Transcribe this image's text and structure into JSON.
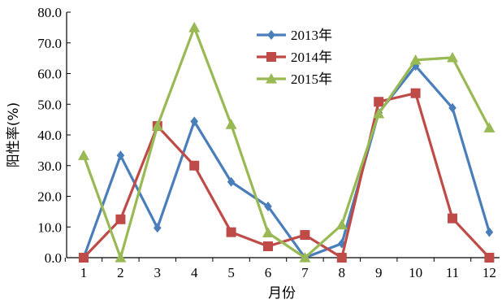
{
  "chart_data": {
    "type": "line",
    "title": "",
    "xlabel": "月份",
    "ylabel": "阳性率(%)",
    "categories": [
      "1",
      "2",
      "3",
      "4",
      "5",
      "6",
      "7",
      "8",
      "9",
      "10",
      "11",
      "12"
    ],
    "ylim": [
      0,
      80
    ],
    "yticks": [
      "0.0",
      "10.0",
      "20.0",
      "30.0",
      "40.0",
      "50.0",
      "60.0",
      "70.0",
      "80.0"
    ],
    "grid": false,
    "legend_position": "top-center",
    "series": [
      {
        "name": "2013年",
        "color": "#4a7ebb",
        "marker": "diamond",
        "values": [
          0,
          33.3,
          9.7,
          44.4,
          24.7,
          16.7,
          0,
          4.6,
          47.2,
          62.5,
          48.8,
          8.3
        ]
      },
      {
        "name": "2014年",
        "color": "#be4b48",
        "marker": "square",
        "values": [
          0,
          12.5,
          42.9,
          30.0,
          8.3,
          3.7,
          7.4,
          0,
          50.8,
          53.6,
          12.8,
          0
        ]
      },
      {
        "name": "2015年",
        "color": "#98b954",
        "marker": "triangle",
        "values": [
          33.3,
          0,
          42.9,
          75.0,
          43.4,
          8.1,
          0,
          10.7,
          46.9,
          64.4,
          65.2,
          42.3
        ]
      }
    ]
  }
}
